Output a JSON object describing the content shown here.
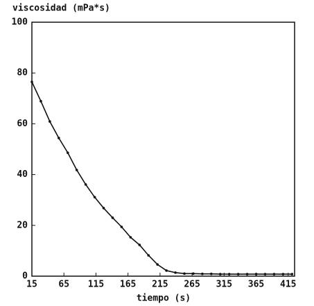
{
  "chart_data": {
    "type": "line",
    "y_label": "viscosidad (mPa*s)",
    "x_label": "tiempo (s)",
    "x": [
      15,
      29,
      43,
      57,
      71,
      85,
      99,
      113,
      127,
      141,
      155,
      169,
      183,
      197,
      211,
      225,
      239,
      253,
      267,
      281,
      295,
      309,
      323,
      337,
      351,
      365,
      379,
      393,
      407,
      421
    ],
    "values": [
      76.5,
      68.9,
      60.9,
      54.4,
      48.6,
      41.8,
      36.1,
      31.1,
      26.8,
      23,
      19.4,
      15.3,
      12.3,
      8.2,
      4.6,
      2.2,
      1.4,
      1.0,
      1.0,
      0.9,
      0.9,
      0.8,
      0.8,
      0.8,
      0.8,
      0.8,
      0.8,
      0.8,
      0.8,
      0.8
    ],
    "color": "#111111",
    "xlim": [
      15,
      425
    ],
    "xticks": [
      15,
      65,
      115,
      165,
      215,
      265,
      315,
      365,
      415
    ],
    "ylim": [
      0,
      100
    ],
    "yticks": [
      0,
      20,
      40,
      60,
      80,
      100
    ]
  }
}
